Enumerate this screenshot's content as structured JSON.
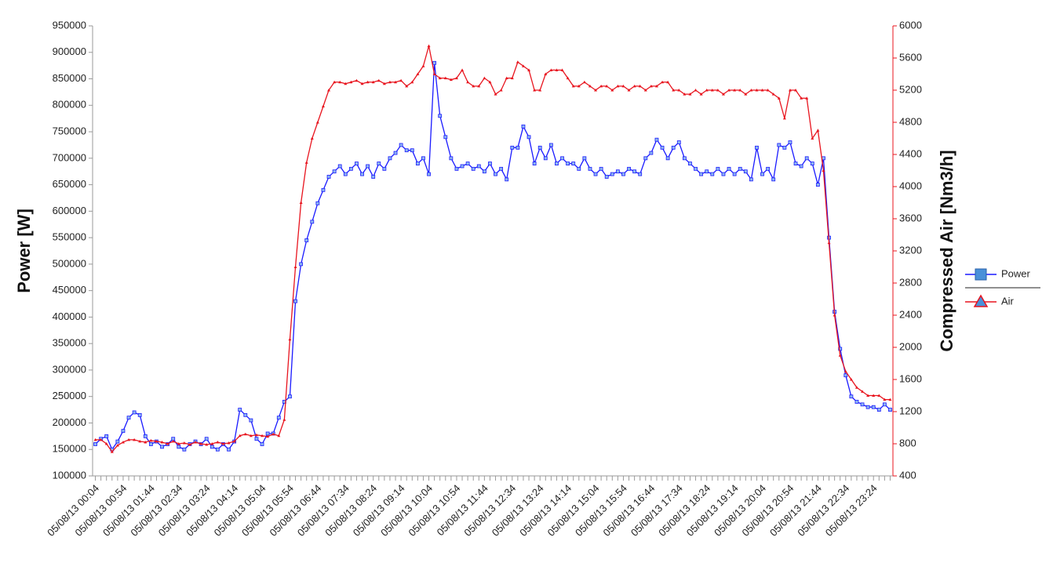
{
  "chart_data": {
    "type": "line",
    "y_label": "Power [W]",
    "y2_label": "Compressed Air [Nm3/h]",
    "legend": "right",
    "grid": false,
    "ylim": [
      100000,
      950000
    ],
    "yticks": [
      100000,
      150000,
      200000,
      250000,
      300000,
      350000,
      400000,
      450000,
      500000,
      550000,
      600000,
      650000,
      700000,
      750000,
      800000,
      850000,
      900000,
      950000
    ],
    "y2lim": [
      400,
      6000
    ],
    "y2ticks": [
      400,
      800,
      1200,
      1600,
      2000,
      2400,
      2800,
      3200,
      3600,
      4000,
      4400,
      4800,
      5200,
      5600,
      6000
    ],
    "categories": [
      "05/08/13 00:04",
      null,
      null,
      null,
      null,
      "05/08/13 00:54",
      null,
      null,
      null,
      null,
      "05/08/13 01:44",
      null,
      null,
      null,
      null,
      "05/08/13 02:34",
      null,
      null,
      null,
      null,
      "05/08/13 03:24",
      null,
      null,
      null,
      null,
      "05/08/13 04:14",
      null,
      null,
      null,
      null,
      "05/08/13 05:04",
      null,
      null,
      null,
      null,
      "05/08/13 05:54",
      null,
      null,
      null,
      null,
      "05/08/13 06:44",
      null,
      null,
      null,
      null,
      "05/08/13 07:34",
      null,
      null,
      null,
      null,
      "05/08/13 08:24",
      null,
      null,
      null,
      null,
      "05/08/13 09:14",
      null,
      null,
      null,
      null,
      "05/08/13 10:04",
      null,
      null,
      null,
      null,
      "05/08/13 10:54",
      null,
      null,
      null,
      null,
      "05/08/13 11:44",
      null,
      null,
      null,
      null,
      "05/08/13 12:34",
      null,
      null,
      null,
      null,
      "05/08/13 13:24",
      null,
      null,
      null,
      null,
      "05/08/13 14:14",
      null,
      null,
      null,
      null,
      "05/08/13 15:04",
      null,
      null,
      null,
      null,
      "05/08/13 15:54",
      null,
      null,
      null,
      null,
      "05/08/13 16:44",
      null,
      null,
      null,
      null,
      "05/08/13 17:34",
      null,
      null,
      null,
      null,
      "05/08/13 18:24",
      null,
      null,
      null,
      null,
      "05/08/13 19:14",
      null,
      null,
      null,
      null,
      "05/08/13 20:04",
      null,
      null,
      null,
      null,
      "05/08/13 20:54",
      null,
      null,
      null,
      null,
      "05/08/13 21:44",
      null,
      null,
      null,
      null,
      "05/08/13 22:34",
      null,
      null,
      null,
      null,
      "05/08/13 23:24",
      null,
      null,
      null
    ],
    "series": [
      {
        "name": "Power",
        "color": "#1a1aff",
        "marker": "square",
        "values": [
          160000,
          170000,
          175000,
          150000,
          165000,
          185000,
          210000,
          220000,
          215000,
          175000,
          160000,
          165000,
          155000,
          160000,
          170000,
          155000,
          150000,
          160000,
          165000,
          160000,
          170000,
          155000,
          150000,
          160000,
          150000,
          165000,
          225000,
          215000,
          205000,
          170000,
          160000,
          180000,
          180000,
          210000,
          240000,
          250000,
          430000,
          500000,
          545000,
          580000,
          615000,
          640000,
          665000,
          675000,
          685000,
          670000,
          680000,
          690000,
          670000,
          685000,
          665000,
          690000,
          680000,
          700000,
          710000,
          725000,
          715000,
          715000,
          690000,
          700000,
          670000,
          880000,
          780000,
          740000,
          700000,
          680000,
          685000,
          690000,
          680000,
          685000,
          675000,
          690000,
          670000,
          680000,
          660000,
          720000,
          720000,
          760000,
          740000,
          690000,
          720000,
          700000,
          725000,
          690000,
          700000,
          690000,
          690000,
          680000,
          700000,
          680000,
          670000,
          680000,
          665000,
          670000,
          675000,
          670000,
          680000,
          675000,
          670000,
          700000,
          710000,
          735000,
          720000,
          700000,
          720000,
          730000,
          700000,
          690000,
          680000,
          670000,
          675000,
          670000,
          680000,
          670000,
          680000,
          670000,
          680000,
          675000,
          660000,
          720000,
          670000,
          680000,
          660000,
          725000,
          720000,
          730000,
          690000,
          685000,
          700000,
          690000,
          650000,
          700000,
          550000,
          410000,
          340000,
          290000,
          250000,
          240000,
          235000,
          230000,
          230000,
          225000,
          235000,
          225000
        ]
      },
      {
        "name": "Air",
        "color": "#e8141e",
        "marker": "triangle",
        "axis": "y2",
        "values": [
          850,
          850,
          800,
          700,
          780,
          820,
          850,
          850,
          830,
          820,
          840,
          830,
          820,
          800,
          830,
          800,
          810,
          790,
          820,
          800,
          790,
          800,
          820,
          800,
          810,
          830,
          900,
          920,
          900,
          910,
          900,
          890,
          920,
          900,
          1100,
          2100,
          3000,
          3800,
          4300,
          4600,
          4800,
          5000,
          5200,
          5300,
          5300,
          5280,
          5300,
          5320,
          5280,
          5300,
          5300,
          5320,
          5280,
          5300,
          5300,
          5320,
          5250,
          5300,
          5400,
          5500,
          5750,
          5400,
          5350,
          5350,
          5330,
          5350,
          5450,
          5300,
          5250,
          5250,
          5350,
          5300,
          5150,
          5200,
          5350,
          5350,
          5550,
          5500,
          5450,
          5200,
          5200,
          5400,
          5450,
          5450,
          5450,
          5350,
          5250,
          5250,
          5300,
          5250,
          5200,
          5250,
          5250,
          5200,
          5250,
          5250,
          5200,
          5250,
          5250,
          5200,
          5250,
          5250,
          5300,
          5300,
          5200,
          5200,
          5150,
          5150,
          5200,
          5150,
          5200,
          5200,
          5200,
          5150,
          5200,
          5200,
          5200,
          5150,
          5200,
          5200,
          5200,
          5200,
          5150,
          5100,
          4850,
          5200,
          5200,
          5100,
          5100,
          4600,
          4700,
          4200,
          3300,
          2400,
          1900,
          1700,
          1600,
          1500,
          1450,
          1400,
          1400,
          1400,
          1350,
          1350
        ]
      }
    ]
  }
}
